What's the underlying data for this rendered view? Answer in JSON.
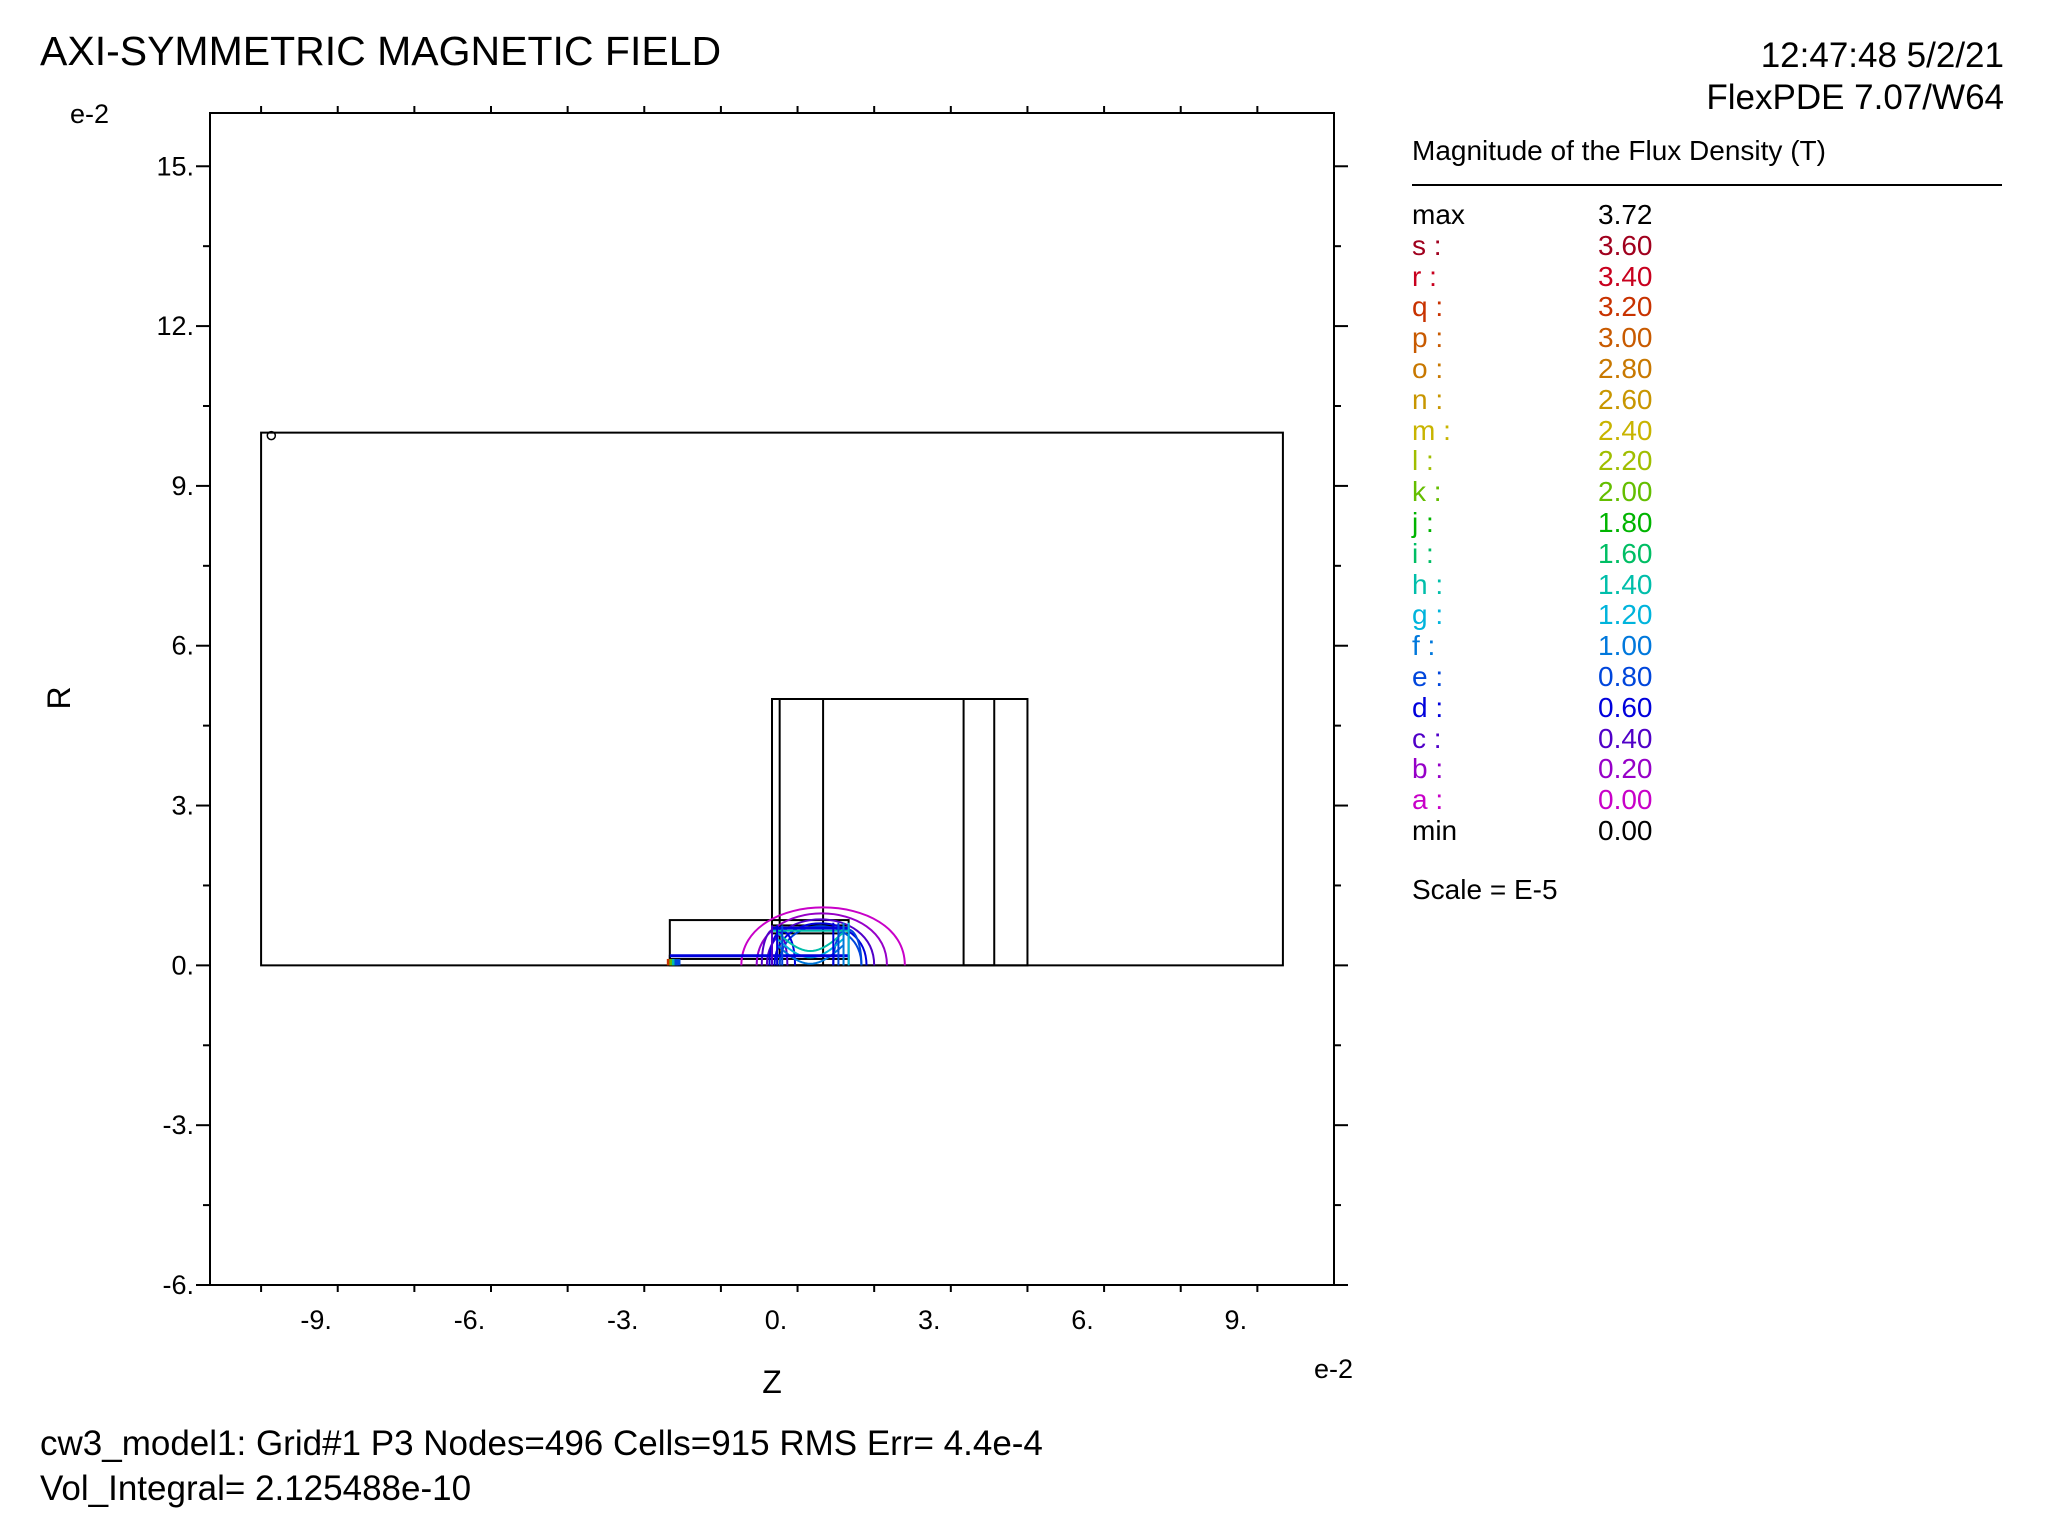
{
  "header": {
    "title": "AXI-SYMMETRIC MAGNETIC FIELD",
    "timestamp": "12:47:48 5/2/21",
    "version": "FlexPDE 7.07/W64"
  },
  "chart_data": {
    "type": "contour",
    "xlabel": "Z",
    "ylabel": "R",
    "x_exponent": "e-2",
    "y_exponent": "e-2",
    "xlim": [
      -11.0,
      11.0
    ],
    "ylim": [
      -6.0,
      16.0
    ],
    "x_ticks": [
      -9,
      -6,
      -3,
      0,
      3,
      6,
      9
    ],
    "x_tick_labels": [
      "-9.",
      "-6.",
      "-3.",
      "0.",
      "3.",
      "6.",
      "9."
    ],
    "y_ticks": [
      -6,
      -3,
      0,
      3,
      6,
      9,
      12,
      15
    ],
    "y_tick_labels": [
      "-6.",
      "-3.",
      "0.",
      "3.",
      "6.",
      "9.",
      "12.",
      "15."
    ],
    "regions": [
      {
        "z": [
          -10,
          10
        ],
        "r": [
          0,
          10
        ]
      },
      {
        "z": [
          0,
          1.0
        ],
        "r": [
          0,
          5.0
        ]
      },
      {
        "z": [
          0,
          0.15
        ],
        "r": [
          0,
          5.0
        ]
      },
      {
        "z": [
          0,
          5.0
        ],
        "r": [
          0,
          5.0
        ]
      },
      {
        "z": [
          3.75,
          4.35
        ],
        "r": [
          0,
          5.0
        ]
      },
      {
        "z": [
          -2.0,
          1.5
        ],
        "r": [
          0,
          0.85
        ]
      },
      {
        "z": [
          0,
          1.5
        ],
        "r": [
          0.6,
          0.75
        ]
      },
      {
        "z": [
          -2.0,
          1.5
        ],
        "r": [
          0.12,
          0.18
        ]
      }
    ],
    "legend": {
      "title": "Magnitude of the Flux Density (T)",
      "scale_note": "Scale = E-5",
      "levels": [
        {
          "key": "max",
          "value": "3.72",
          "color": "#000000"
        },
        {
          "key": "s :",
          "value": "3.60",
          "color": "#a0001e"
        },
        {
          "key": "r :",
          "value": "3.40",
          "color": "#c8001e"
        },
        {
          "key": "q :",
          "value": "3.20",
          "color": "#c83200"
        },
        {
          "key": "p :",
          "value": "3.00",
          "color": "#c85a00"
        },
        {
          "key": "o :",
          "value": "2.80",
          "color": "#c87800"
        },
        {
          "key": "n :",
          "value": "2.60",
          "color": "#c89600"
        },
        {
          "key": "m :",
          "value": "2.40",
          "color": "#c8b400"
        },
        {
          "key": "l :",
          "value": "2.20",
          "color": "#a0be00"
        },
        {
          "key": "k :",
          "value": "2.00",
          "color": "#64be00"
        },
        {
          "key": "j :",
          "value": "1.80",
          "color": "#00b400"
        },
        {
          "key": "i :",
          "value": "1.60",
          "color": "#00be64"
        },
        {
          "key": "h :",
          "value": "1.40",
          "color": "#00beaa"
        },
        {
          "key": "g :",
          "value": "1.20",
          "color": "#00b4dc"
        },
        {
          "key": "f :",
          "value": "1.00",
          "color": "#0078dc"
        },
        {
          "key": "e :",
          "value": "0.80",
          "color": "#0046dc"
        },
        {
          "key": "d :",
          "value": "0.60",
          "color": "#0000dc"
        },
        {
          "key": "c :",
          "value": "0.40",
          "color": "#5000c8"
        },
        {
          "key": "b :",
          "value": "0.20",
          "color": "#9600c8"
        },
        {
          "key": "a :",
          "value": "0.00",
          "color": "#c800c8"
        },
        {
          "key": "min",
          "value": "0.00",
          "color": "#000000"
        }
      ]
    }
  },
  "footer": {
    "line1": "cw3_model1:  Grid#1  P3  Nodes=496 Cells=915 RMS Err= 4.4e-4",
    "line2": "Vol_Integral=  2.125488e-10"
  }
}
